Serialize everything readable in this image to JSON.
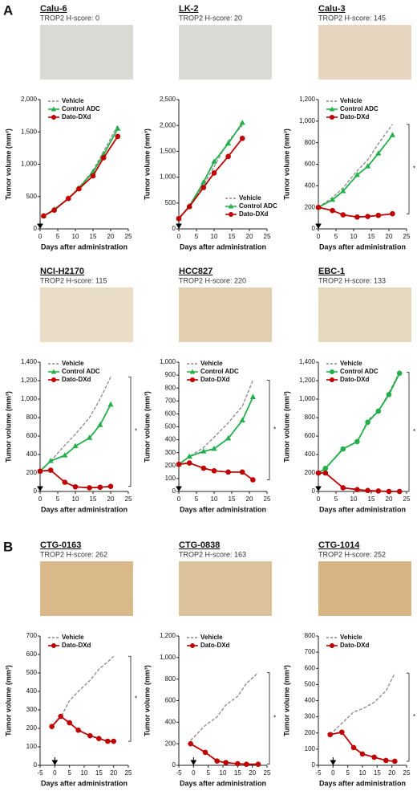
{
  "panel_labels": [
    "A",
    "B"
  ],
  "chart_data": [
    {
      "type": "line",
      "title": "Calu-6",
      "subtitle": "TROP2 H-score: 0",
      "x_label": "Days after administration",
      "y_label": "Tumor volume (mm³)",
      "legend": "upper left",
      "x": [
        1,
        4,
        8,
        11,
        15,
        18,
        22
      ],
      "series": [
        {
          "name": "Vehicle",
          "color": "#888888",
          "dash": true,
          "marker": "none",
          "values": [
            200,
            300,
            460,
            640,
            900,
            1200,
            1600
          ]
        },
        {
          "name": "Control ADC",
          "color": "#22b04a",
          "marker": "triangle",
          "values": [
            200,
            300,
            470,
            630,
            880,
            1150,
            1550
          ]
        },
        {
          "name": "Dato-DXd",
          "color": "#c00000",
          "marker": "circle",
          "values": [
            200,
            290,
            470,
            620,
            820,
            1100,
            1430
          ]
        }
      ],
      "xlim": [
        0,
        25
      ],
      "xticks": [
        0,
        5,
        10,
        15,
        20,
        25
      ],
      "ylim": [
        0,
        2000
      ],
      "yticks": [
        0,
        500,
        {
          "value": 1000,
          "label": "1,000"
        },
        {
          "value": 1500,
          "label": "1,500"
        },
        {
          "value": 2000,
          "label": "2,000"
        }
      ]
    },
    {
      "type": "line",
      "title": "LK-2",
      "subtitle": "TROP2 H-score: 20",
      "x_label": "Days after administration",
      "y_label": "Tumor volume (mm³)",
      "legend": "lower right",
      "x": [
        0,
        3,
        7,
        10,
        14,
        18
      ],
      "series": [
        {
          "name": "Vehicle",
          "color": "#888888",
          "dash": true,
          "marker": "none",
          "values": [
            200,
            440,
            850,
            1200,
            1700,
            2000
          ]
        },
        {
          "name": "Control ADC",
          "color": "#22b04a",
          "marker": "triangle",
          "values": [
            200,
            440,
            900,
            1300,
            1650,
            2050
          ]
        },
        {
          "name": "Dato-DXd",
          "color": "#c00000",
          "marker": "circle",
          "values": [
            200,
            430,
            800,
            1080,
            1400,
            1750
          ]
        }
      ],
      "xlim": [
        0,
        25
      ],
      "xticks": [
        0,
        5,
        10,
        15,
        20,
        25
      ],
      "ylim": [
        0,
        2500
      ],
      "yticks": [
        0,
        500,
        {
          "value": 1000,
          "label": "1,000"
        },
        {
          "value": 1500,
          "label": "1,500"
        },
        {
          "value": 2000,
          "label": "2,000"
        },
        {
          "value": 2500,
          "label": "2,500"
        }
      ]
    },
    {
      "type": "line",
      "title": "Calu-3",
      "subtitle": "TROP2 H-score: 145",
      "x_label": "Days after administration",
      "y_label": "Tumor volume (mm³)",
      "legend": "upper left",
      "annotation": "*",
      "x": [
        0,
        4,
        7,
        11,
        14,
        17,
        21
      ],
      "series": [
        {
          "name": "Vehicle",
          "color": "#888888",
          "dash": true,
          "marker": "none",
          "values": [
            200,
            290,
            380,
            540,
            640,
            790,
            970
          ]
        },
        {
          "name": "Control ADC",
          "color": "#22b04a",
          "marker": "triangle",
          "values": [
            200,
            270,
            350,
            500,
            580,
            700,
            870
          ]
        },
        {
          "name": "Dato-DXd",
          "color": "#c00000",
          "marker": "circle",
          "values": [
            200,
            170,
            130,
            110,
            115,
            125,
            140
          ]
        }
      ],
      "xlim": [
        0,
        25
      ],
      "xticks": [
        0,
        5,
        10,
        15,
        20,
        25
      ],
      "ylim": [
        0,
        1200
      ],
      "yticks": [
        0,
        200,
        400,
        600,
        800,
        {
          "value": 1000,
          "label": "1,000"
        },
        {
          "value": 1200,
          "label": "1,200"
        }
      ]
    },
    {
      "type": "line",
      "title": "NCI-H2170",
      "subtitle": "TROP2 H-score: 115",
      "x_label": "Days after administration",
      "y_label": "Tumor volume (mm³)",
      "legend": "upper left",
      "annotation": "*",
      "x": [
        0,
        3,
        7,
        10,
        14,
        17,
        20
      ],
      "series": [
        {
          "name": "Vehicle",
          "color": "#888888",
          "dash": true,
          "marker": "none",
          "values": [
            220,
            330,
            500,
            620,
            800,
            1000,
            1240
          ]
        },
        {
          "name": "Control ADC",
          "color": "#22b04a",
          "marker": "triangle",
          "values": [
            220,
            330,
            390,
            490,
            580,
            720,
            940
          ]
        },
        {
          "name": "Dato-DXd",
          "color": "#c00000",
          "marker": "circle",
          "values": [
            220,
            230,
            100,
            50,
            40,
            45,
            55
          ]
        }
      ],
      "xlim": [
        0,
        25
      ],
      "xticks": [
        0,
        5,
        10,
        15,
        20,
        25
      ],
      "ylim": [
        0,
        1400
      ],
      "yticks": [
        0,
        200,
        400,
        600,
        800,
        {
          "value": 1000,
          "label": "1,000"
        },
        {
          "value": 1200,
          "label": "1,200"
        },
        {
          "value": 1400,
          "label": "1,400"
        }
      ]
    },
    {
      "type": "line",
      "title": "HCC827",
      "subtitle": "TROP2 H-score: 220",
      "x_label": "Days after administration",
      "y_label": "Tumor volume (mm³)",
      "legend": "upper left",
      "annotation": "*",
      "x": [
        0,
        3,
        7,
        10,
        14,
        18,
        21
      ],
      "series": [
        {
          "name": "Vehicle",
          "color": "#888888",
          "dash": true,
          "marker": "none",
          "values": [
            210,
            270,
            340,
            420,
            530,
            660,
            860
          ]
        },
        {
          "name": "Control ADC",
          "color": "#22b04a",
          "marker": "triangle",
          "values": [
            210,
            270,
            310,
            330,
            410,
            550,
            730
          ]
        },
        {
          "name": "Dato-DXd",
          "color": "#c00000",
          "marker": "circle",
          "values": [
            210,
            220,
            180,
            160,
            150,
            150,
            90
          ]
        }
      ],
      "xlim": [
        0,
        25
      ],
      "xticks": [
        0,
        5,
        10,
        15,
        20,
        25
      ],
      "ylim": [
        0,
        1000
      ],
      "yticks": [
        0,
        100,
        200,
        300,
        400,
        500,
        600,
        700,
        800,
        900,
        {
          "value": 1000,
          "label": "1,000"
        }
      ]
    },
    {
      "type": "line",
      "title": "EBC-1",
      "subtitle": "TROP2 H-score: 133",
      "x_label": "Days after administration",
      "y_label": "Tumor volume (mm³)",
      "legend": "upper left",
      "annotation": "*",
      "x": [
        0,
        2,
        7,
        11,
        14,
        17,
        20,
        23
      ],
      "series": [
        {
          "name": "Vehicle",
          "color": "#888888",
          "dash": true,
          "marker": "none",
          "values": [
            200,
            250,
            470,
            530,
            770,
            870,
            1070,
            1290
          ]
        },
        {
          "name": "Control ADC",
          "color": "#22b04a",
          "marker": "circle",
          "values": [
            200,
            250,
            460,
            540,
            750,
            870,
            1050,
            1280
          ]
        },
        {
          "name": "Dato-DXd",
          "color": "#c00000",
          "marker": "circle",
          "values": [
            200,
            200,
            40,
            20,
            10,
            5,
            0,
            0
          ]
        }
      ],
      "xlim": [
        0,
        25
      ],
      "xticks": [
        0,
        5,
        10,
        15,
        20,
        25
      ],
      "ylim": [
        0,
        1400
      ],
      "yticks": [
        0,
        200,
        400,
        600,
        800,
        {
          "value": 1000,
          "label": "1,000"
        },
        {
          "value": 1200,
          "label": "1,200"
        },
        {
          "value": 1400,
          "label": "1,400"
        }
      ]
    },
    {
      "type": "line",
      "title": "CTG-0163",
      "subtitle": "TROP2 H-score: 262",
      "x_label": "Days after administration",
      "y_label": "Tumor volume (mm³)",
      "legend": "upper left",
      "annotation": "*",
      "x": [
        -1,
        2,
        5,
        8,
        12,
        15,
        18,
        20
      ],
      "series": [
        {
          "name": "Vehicle",
          "color": "#888888",
          "dash": true,
          "marker": "none",
          "values": [
            210,
            260,
            350,
            400,
            460,
            520,
            560,
            590
          ]
        },
        {
          "name": "Dato-DXd",
          "color": "#c00000",
          "marker": "circle",
          "values": [
            210,
            265,
            230,
            190,
            160,
            145,
            130,
            130
          ]
        }
      ],
      "xlim": [
        -5,
        25
      ],
      "xticks": [
        -5,
        0,
        5,
        10,
        15,
        20,
        25
      ],
      "ylim": [
        0,
        700
      ],
      "yticks": [
        0,
        100,
        200,
        300,
        400,
        500,
        600,
        700
      ]
    },
    {
      "type": "line",
      "title": "CTG-0838",
      "subtitle": "TROP2 H-score: 163",
      "x_label": "Days after administration",
      "y_label": "Tumor volume (mm³)",
      "legend": "upper left",
      "annotation": "*",
      "x": [
        -1,
        4,
        8,
        11,
        15,
        18,
        22
      ],
      "series": [
        {
          "name": "Vehicle",
          "color": "#888888",
          "dash": true,
          "marker": "none",
          "values": [
            230,
            370,
            450,
            560,
            640,
            760,
            860
          ]
        },
        {
          "name": "Dato-DXd",
          "color": "#c00000",
          "marker": "circle",
          "values": [
            200,
            120,
            40,
            25,
            15,
            10,
            10
          ]
        }
      ],
      "xlim": [
        -5,
        25
      ],
      "xticks": [
        -5,
        0,
        5,
        10,
        15,
        20,
        25
      ],
      "ylim": [
        0,
        1200
      ],
      "yticks": [
        0,
        200,
        400,
        600,
        800,
        {
          "value": 1000,
          "label": "1,000"
        },
        {
          "value": 1200,
          "label": "1,200"
        }
      ]
    },
    {
      "type": "line",
      "title": "CTG-1014",
      "subtitle": "TROP2 H-score: 252",
      "x_label": "Days after administration",
      "y_label": "Tumor volume (mm³)",
      "legend": "upper left",
      "annotation": "*",
      "x": [
        -1,
        3,
        7,
        10,
        14,
        18,
        21
      ],
      "series": [
        {
          "name": "Vehicle",
          "color": "#888888",
          "dash": true,
          "marker": "none",
          "values": [
            190,
            260,
            330,
            350,
            390,
            460,
            570
          ]
        },
        {
          "name": "Dato-DXd",
          "color": "#c00000",
          "marker": "circle",
          "values": [
            190,
            205,
            110,
            70,
            50,
            30,
            25
          ]
        }
      ],
      "xlim": [
        -5,
        25
      ],
      "xticks": [
        -5,
        0,
        5,
        10,
        15,
        20,
        25
      ],
      "ylim": [
        0,
        800
      ],
      "yticks": [
        0,
        100,
        200,
        300,
        400,
        500,
        600,
        700,
        800
      ]
    }
  ]
}
